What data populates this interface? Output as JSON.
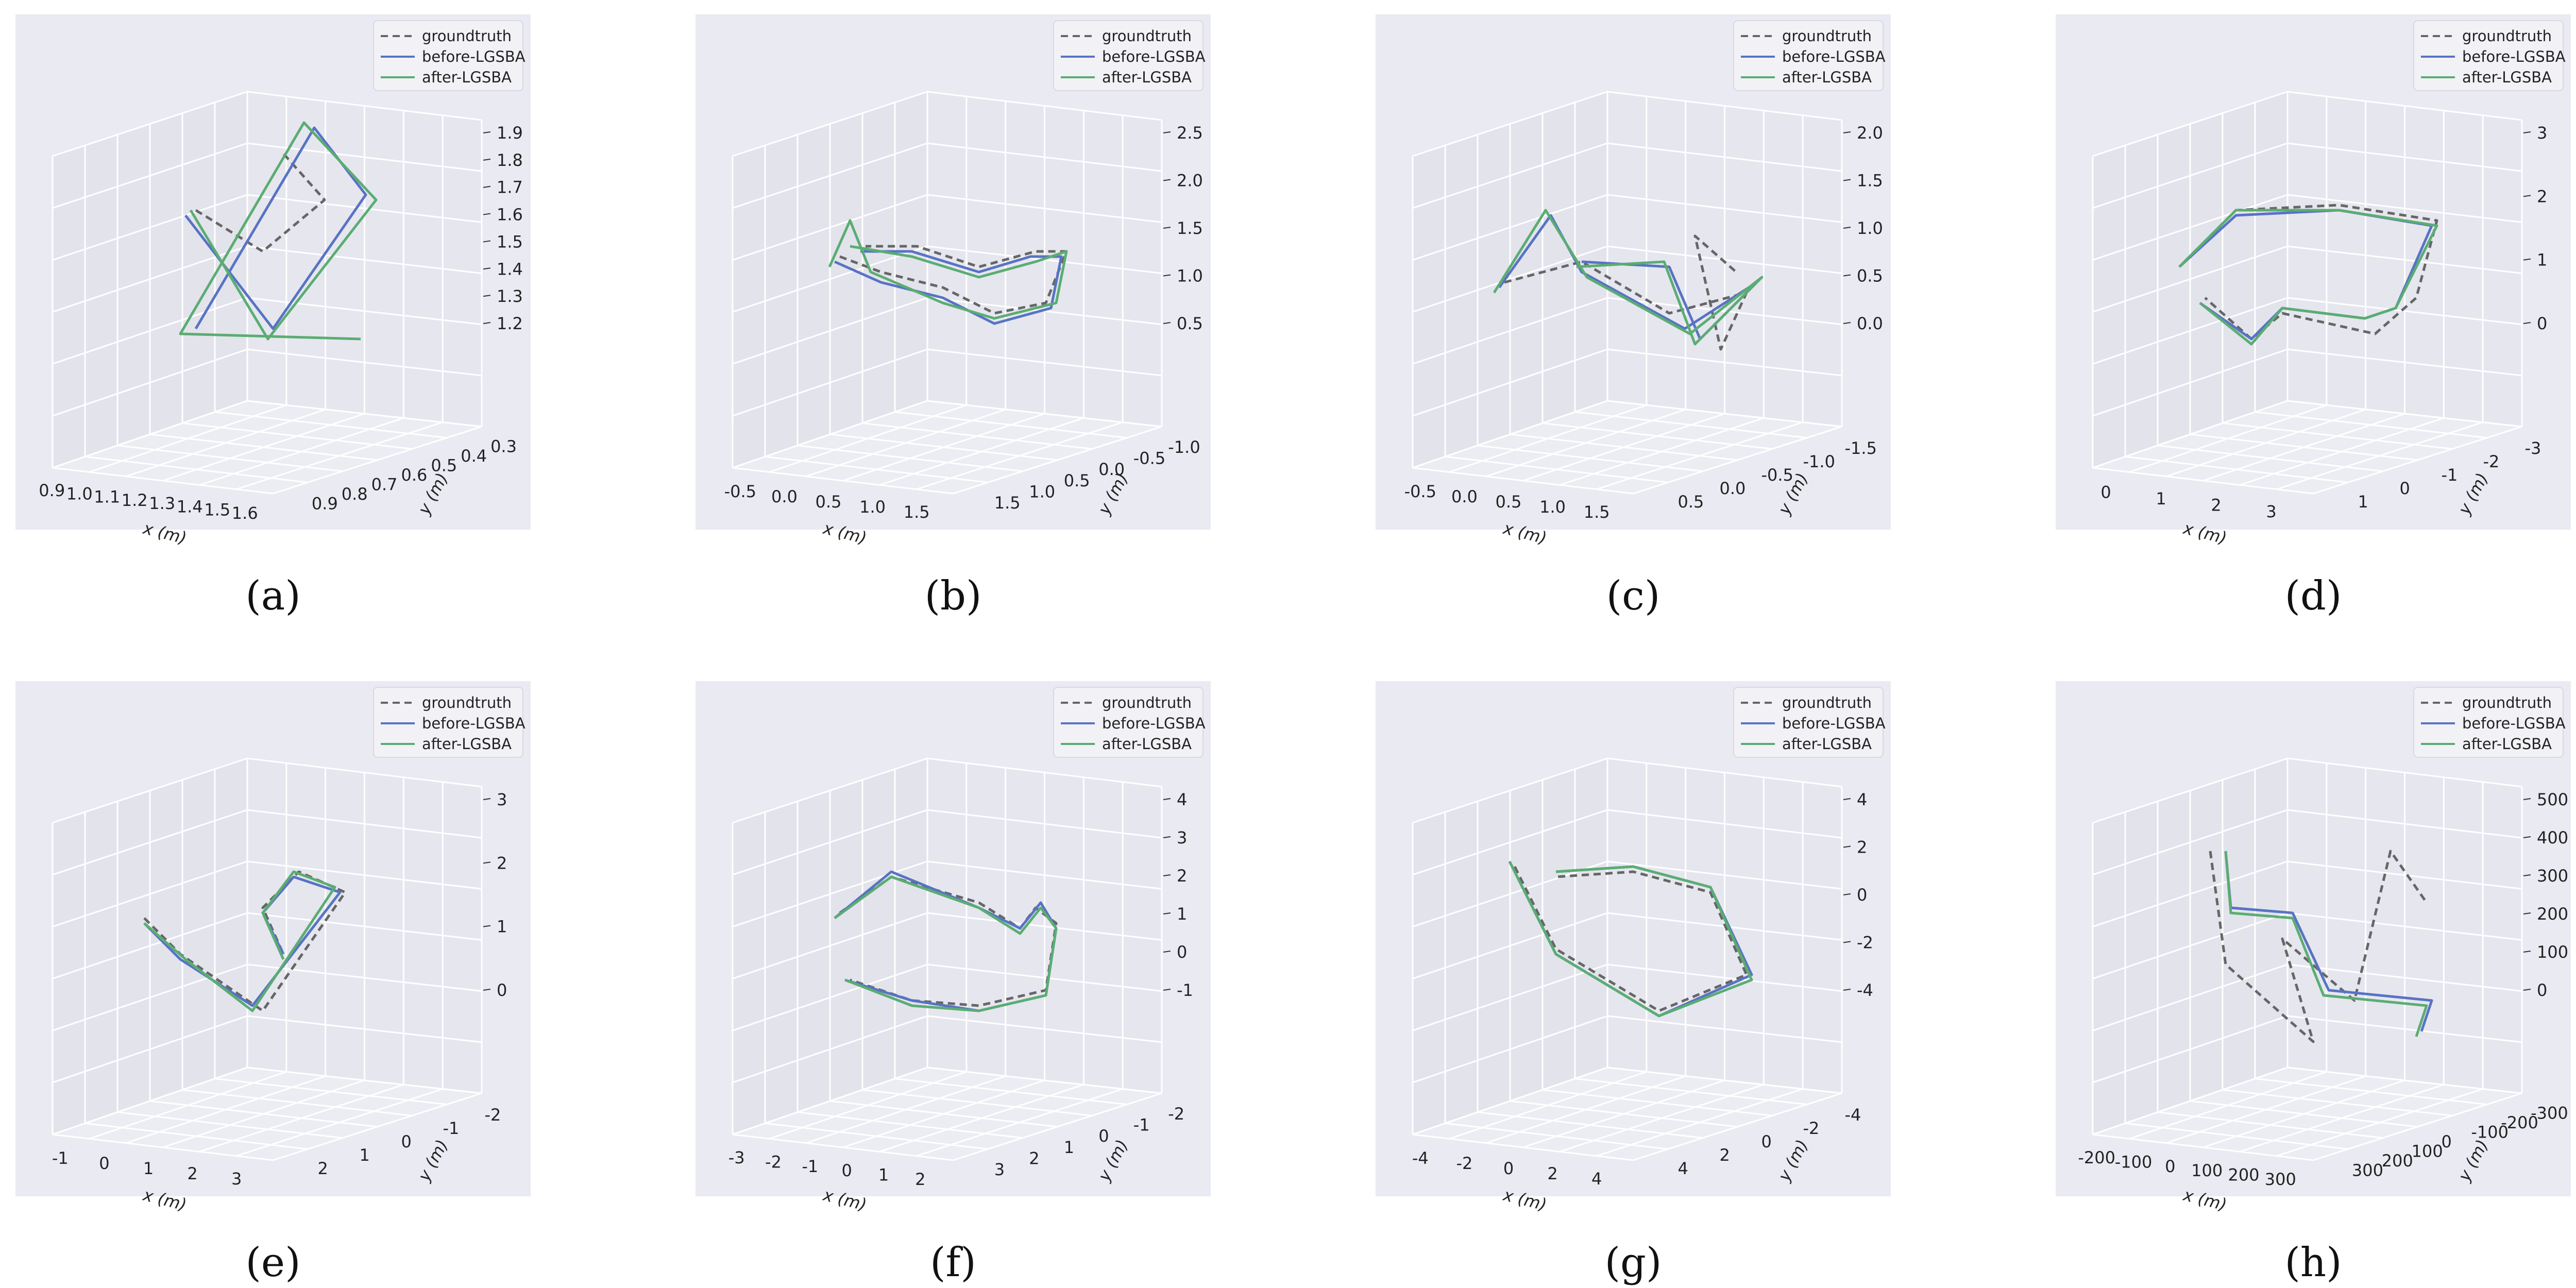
{
  "figure": {
    "legend": [
      "groundtruth",
      "before-LGSBA",
      "after-LGSBA"
    ],
    "colors": {
      "groundtruth": "#666666",
      "before": "#5873c4",
      "after": "#5aad72",
      "pane_bg": "#eaeaf2",
      "grid": "#ffffff"
    }
  },
  "chart_data": [
    {
      "type": "line3d",
      "caption": "(a)",
      "xlabel": "x (m)",
      "ylabel": "y (m)",
      "x_ticks": [
        "0.9",
        "1.0",
        "1.1",
        "1.2",
        "1.3",
        "1.4",
        "1.5",
        "1.6"
      ],
      "y_ticks": [
        "0.3",
        "0.4",
        "0.5",
        "0.6",
        "0.7",
        "0.8",
        "0.9"
      ],
      "z_ticks": [
        "1.2",
        "1.3",
        "1.4",
        "1.5",
        "1.6",
        "1.7",
        "1.8",
        "1.9"
      ],
      "groundtruth": [
        [
          0.35,
          0.38
        ],
        [
          0.48,
          0.46
        ],
        [
          0.6,
          0.36
        ],
        [
          0.52,
          0.27
        ]
      ],
      "before": [
        [
          0.33,
          0.39
        ],
        [
          0.5,
          0.61
        ],
        [
          0.68,
          0.35
        ],
        [
          0.58,
          0.22
        ],
        [
          0.35,
          0.61
        ]
      ],
      "after": [
        [
          0.34,
          0.38
        ],
        [
          0.49,
          0.63
        ],
        [
          0.7,
          0.36
        ],
        [
          0.56,
          0.21
        ],
        [
          0.32,
          0.62
        ],
        [
          0.67,
          0.63
        ]
      ]
    },
    {
      "type": "line3d",
      "caption": "(b)",
      "xlabel": "x (m)",
      "ylabel": "y (m)",
      "x_ticks": [
        "-0.5",
        "0.0",
        "0.5",
        "1.0",
        "1.5"
      ],
      "y_ticks": [
        "-1.0",
        "-0.5",
        "0.0",
        "0.5",
        "1.0",
        "1.5"
      ],
      "z_ticks": [
        "0.5",
        "1.0",
        "1.5",
        "2.0",
        "2.5"
      ],
      "groundtruth": [
        [
          0.28,
          0.47
        ],
        [
          0.36,
          0.5
        ],
        [
          0.48,
          0.53
        ],
        [
          0.58,
          0.58
        ],
        [
          0.68,
          0.56
        ],
        [
          0.72,
          0.46
        ],
        [
          0.66,
          0.46
        ],
        [
          0.55,
          0.49
        ],
        [
          0.43,
          0.45
        ],
        [
          0.33,
          0.45
        ]
      ],
      "before": [
        [
          0.27,
          0.48
        ],
        [
          0.36,
          0.52
        ],
        [
          0.48,
          0.55
        ],
        [
          0.58,
          0.6
        ],
        [
          0.69,
          0.57
        ],
        [
          0.71,
          0.47
        ],
        [
          0.65,
          0.47
        ],
        [
          0.55,
          0.5
        ],
        [
          0.42,
          0.46
        ],
        [
          0.32,
          0.46
        ]
      ],
      "after": [
        [
          0.26,
          0.49
        ],
        [
          0.3,
          0.4
        ],
        [
          0.34,
          0.5
        ],
        [
          0.48,
          0.56
        ],
        [
          0.58,
          0.59
        ],
        [
          0.7,
          0.56
        ],
        [
          0.72,
          0.46
        ],
        [
          0.66,
          0.48
        ],
        [
          0.55,
          0.51
        ],
        [
          0.42,
          0.47
        ],
        [
          0.3,
          0.45
        ]
      ]
    },
    {
      "type": "line3d",
      "caption": "(c)",
      "xlabel": "x (m)",
      "ylabel": "y (m)",
      "x_ticks": [
        "-0.5",
        "0.0",
        "0.5",
        "1.0",
        "1.5"
      ],
      "y_ticks": [
        "-1.5",
        "-1.0",
        "-0.5",
        "0.0",
        "0.5"
      ],
      "z_ticks": [
        "0.0",
        "0.5",
        "1.0",
        "1.5",
        "2.0"
      ],
      "groundtruth": [
        [
          0.25,
          0.52
        ],
        [
          0.4,
          0.48
        ],
        [
          0.57,
          0.58
        ],
        [
          0.72,
          0.54
        ],
        [
          0.67,
          0.65
        ],
        [
          0.62,
          0.43
        ],
        [
          0.7,
          0.5
        ]
      ],
      "before": [
        [
          0.24,
          0.53
        ],
        [
          0.34,
          0.39
        ],
        [
          0.4,
          0.5
        ],
        [
          0.6,
          0.61
        ],
        [
          0.74,
          0.52
        ],
        [
          0.63,
          0.63
        ],
        [
          0.57,
          0.49
        ],
        [
          0.4,
          0.48
        ]
      ],
      "after": [
        [
          0.23,
          0.54
        ],
        [
          0.33,
          0.38
        ],
        [
          0.41,
          0.51
        ],
        [
          0.61,
          0.62
        ],
        [
          0.75,
          0.51
        ],
        [
          0.62,
          0.64
        ],
        [
          0.56,
          0.48
        ],
        [
          0.39,
          0.49
        ]
      ]
    },
    {
      "type": "line3d",
      "caption": "(d)",
      "xlabel": "x (m)",
      "ylabel": "y (m)",
      "x_ticks": [
        "0",
        "1",
        "2",
        "3"
      ],
      "y_ticks": [
        "-3",
        "-2",
        "-1",
        "0",
        "1"
      ],
      "z_ticks": [
        "0",
        "1",
        "2",
        "3"
      ],
      "groundtruth": [
        [
          0.25,
          0.48
        ],
        [
          0.35,
          0.38
        ],
        [
          0.55,
          0.37
        ],
        [
          0.74,
          0.4
        ],
        [
          0.7,
          0.55
        ],
        [
          0.62,
          0.62
        ],
        [
          0.44,
          0.58
        ],
        [
          0.38,
          0.63
        ],
        [
          0.29,
          0.55
        ]
      ],
      "before": [
        [
          0.24,
          0.49
        ],
        [
          0.35,
          0.39
        ],
        [
          0.55,
          0.38
        ],
        [
          0.73,
          0.41
        ],
        [
          0.66,
          0.57
        ],
        [
          0.6,
          0.59
        ],
        [
          0.44,
          0.57
        ],
        [
          0.38,
          0.63
        ],
        [
          0.28,
          0.56
        ]
      ],
      "after": [
        [
          0.24,
          0.49
        ],
        [
          0.35,
          0.38
        ],
        [
          0.55,
          0.38
        ],
        [
          0.74,
          0.41
        ],
        [
          0.66,
          0.57
        ],
        [
          0.6,
          0.59
        ],
        [
          0.44,
          0.57
        ],
        [
          0.38,
          0.64
        ],
        [
          0.28,
          0.56
        ]
      ]
    },
    {
      "type": "line3d",
      "caption": "(e)",
      "xlabel": "x (m)",
      "ylabel": "y (m)",
      "x_ticks": [
        "-1",
        "0",
        "1",
        "2",
        "3"
      ],
      "y_ticks": [
        "-2",
        "-1",
        "0",
        "1",
        "2"
      ],
      "z_ticks": [
        "0",
        "1",
        "2",
        "3"
      ],
      "groundtruth": [
        [
          0.25,
          0.46
        ],
        [
          0.32,
          0.53
        ],
        [
          0.48,
          0.64
        ],
        [
          0.64,
          0.41
        ],
        [
          0.55,
          0.37
        ],
        [
          0.48,
          0.44
        ],
        [
          0.52,
          0.53
        ]
      ],
      "before": [
        [
          0.25,
          0.47
        ],
        [
          0.32,
          0.54
        ],
        [
          0.46,
          0.63
        ],
        [
          0.63,
          0.41
        ],
        [
          0.54,
          0.38
        ],
        [
          0.48,
          0.45
        ],
        [
          0.52,
          0.53
        ]
      ],
      "after": [
        [
          0.25,
          0.47
        ],
        [
          0.33,
          0.54
        ],
        [
          0.46,
          0.64
        ],
        [
          0.62,
          0.4
        ],
        [
          0.54,
          0.37
        ],
        [
          0.48,
          0.45
        ],
        [
          0.52,
          0.54
        ]
      ]
    },
    {
      "type": "line3d",
      "caption": "(f)",
      "xlabel": "x (m)",
      "ylabel": "y (m)",
      "x_ticks": [
        "-3",
        "-2",
        "-1",
        "0",
        "1",
        "2"
      ],
      "y_ticks": [
        "-2",
        "-1",
        "0",
        "1",
        "2",
        "3"
      ],
      "z_ticks": [
        "-1",
        "0",
        "1",
        "2",
        "3",
        "4"
      ],
      "groundtruth": [
        [
          0.28,
          0.45
        ],
        [
          0.38,
          0.38
        ],
        [
          0.55,
          0.43
        ],
        [
          0.63,
          0.48
        ],
        [
          0.66,
          0.44
        ],
        [
          0.7,
          0.47
        ],
        [
          0.68,
          0.6
        ],
        [
          0.55,
          0.63
        ],
        [
          0.42,
          0.62
        ],
        [
          0.3,
          0.58
        ]
      ],
      "before": [
        [
          0.27,
          0.46
        ],
        [
          0.38,
          0.37
        ],
        [
          0.55,
          0.44
        ],
        [
          0.63,
          0.48
        ],
        [
          0.67,
          0.43
        ],
        [
          0.7,
          0.48
        ],
        [
          0.68,
          0.61
        ],
        [
          0.55,
          0.64
        ],
        [
          0.42,
          0.62
        ],
        [
          0.29,
          0.58
        ]
      ],
      "after": [
        [
          0.27,
          0.46
        ],
        [
          0.38,
          0.38
        ],
        [
          0.55,
          0.44
        ],
        [
          0.63,
          0.49
        ],
        [
          0.67,
          0.44
        ],
        [
          0.7,
          0.48
        ],
        [
          0.68,
          0.61
        ],
        [
          0.55,
          0.64
        ],
        [
          0.42,
          0.63
        ],
        [
          0.29,
          0.58
        ]
      ]
    },
    {
      "type": "line3d",
      "caption": "(g)",
      "xlabel": "x (m)",
      "ylabel": "y (m)",
      "x_ticks": [
        "-4",
        "-2",
        "0",
        "2",
        "4"
      ],
      "y_ticks": [
        "-4",
        "-2",
        "0",
        "2",
        "4"
      ],
      "z_ticks": [
        "-4",
        "-2",
        "0",
        "2",
        "4"
      ],
      "groundtruth": [
        [
          0.27,
          0.36
        ],
        [
          0.35,
          0.52
        ],
        [
          0.55,
          0.64
        ],
        [
          0.72,
          0.57
        ],
        [
          0.65,
          0.41
        ],
        [
          0.5,
          0.37
        ],
        [
          0.35,
          0.38
        ]
      ],
      "before": [
        [
          0.26,
          0.35
        ],
        [
          0.35,
          0.53
        ],
        [
          0.55,
          0.65
        ],
        [
          0.73,
          0.57
        ],
        [
          0.65,
          0.4
        ],
        [
          0.5,
          0.36
        ],
        [
          0.35,
          0.37
        ]
      ],
      "after": [
        [
          0.26,
          0.35
        ],
        [
          0.35,
          0.53
        ],
        [
          0.55,
          0.65
        ],
        [
          0.73,
          0.58
        ],
        [
          0.65,
          0.4
        ],
        [
          0.5,
          0.36
        ],
        [
          0.35,
          0.37
        ]
      ]
    },
    {
      "type": "line3d",
      "caption": "(h)",
      "xlabel": "x (m)",
      "ylabel": "y (m)",
      "x_ticks": [
        "-200",
        "-100",
        "0",
        "100",
        "200",
        "300"
      ],
      "y_ticks": [
        "-300",
        "-200",
        "-100",
        "0",
        "100",
        "200",
        "300"
      ],
      "z_ticks": [
        "0",
        "100",
        "200",
        "300",
        "400",
        "500"
      ],
      "groundtruth": [
        [
          0.3,
          0.33
        ],
        [
          0.33,
          0.55
        ],
        [
          0.5,
          0.7
        ],
        [
          0.44,
          0.5
        ],
        [
          0.58,
          0.62
        ],
        [
          0.65,
          0.33
        ],
        [
          0.72,
          0.43
        ]
      ],
      "before": [
        [
          0.33,
          0.33
        ],
        [
          0.34,
          0.44
        ],
        [
          0.46,
          0.45
        ],
        [
          0.53,
          0.6
        ],
        [
          0.73,
          0.62
        ],
        [
          0.71,
          0.68
        ]
      ],
      "after": [
        [
          0.33,
          0.33
        ],
        [
          0.34,
          0.45
        ],
        [
          0.46,
          0.46
        ],
        [
          0.52,
          0.61
        ],
        [
          0.72,
          0.63
        ],
        [
          0.7,
          0.69
        ]
      ]
    }
  ]
}
